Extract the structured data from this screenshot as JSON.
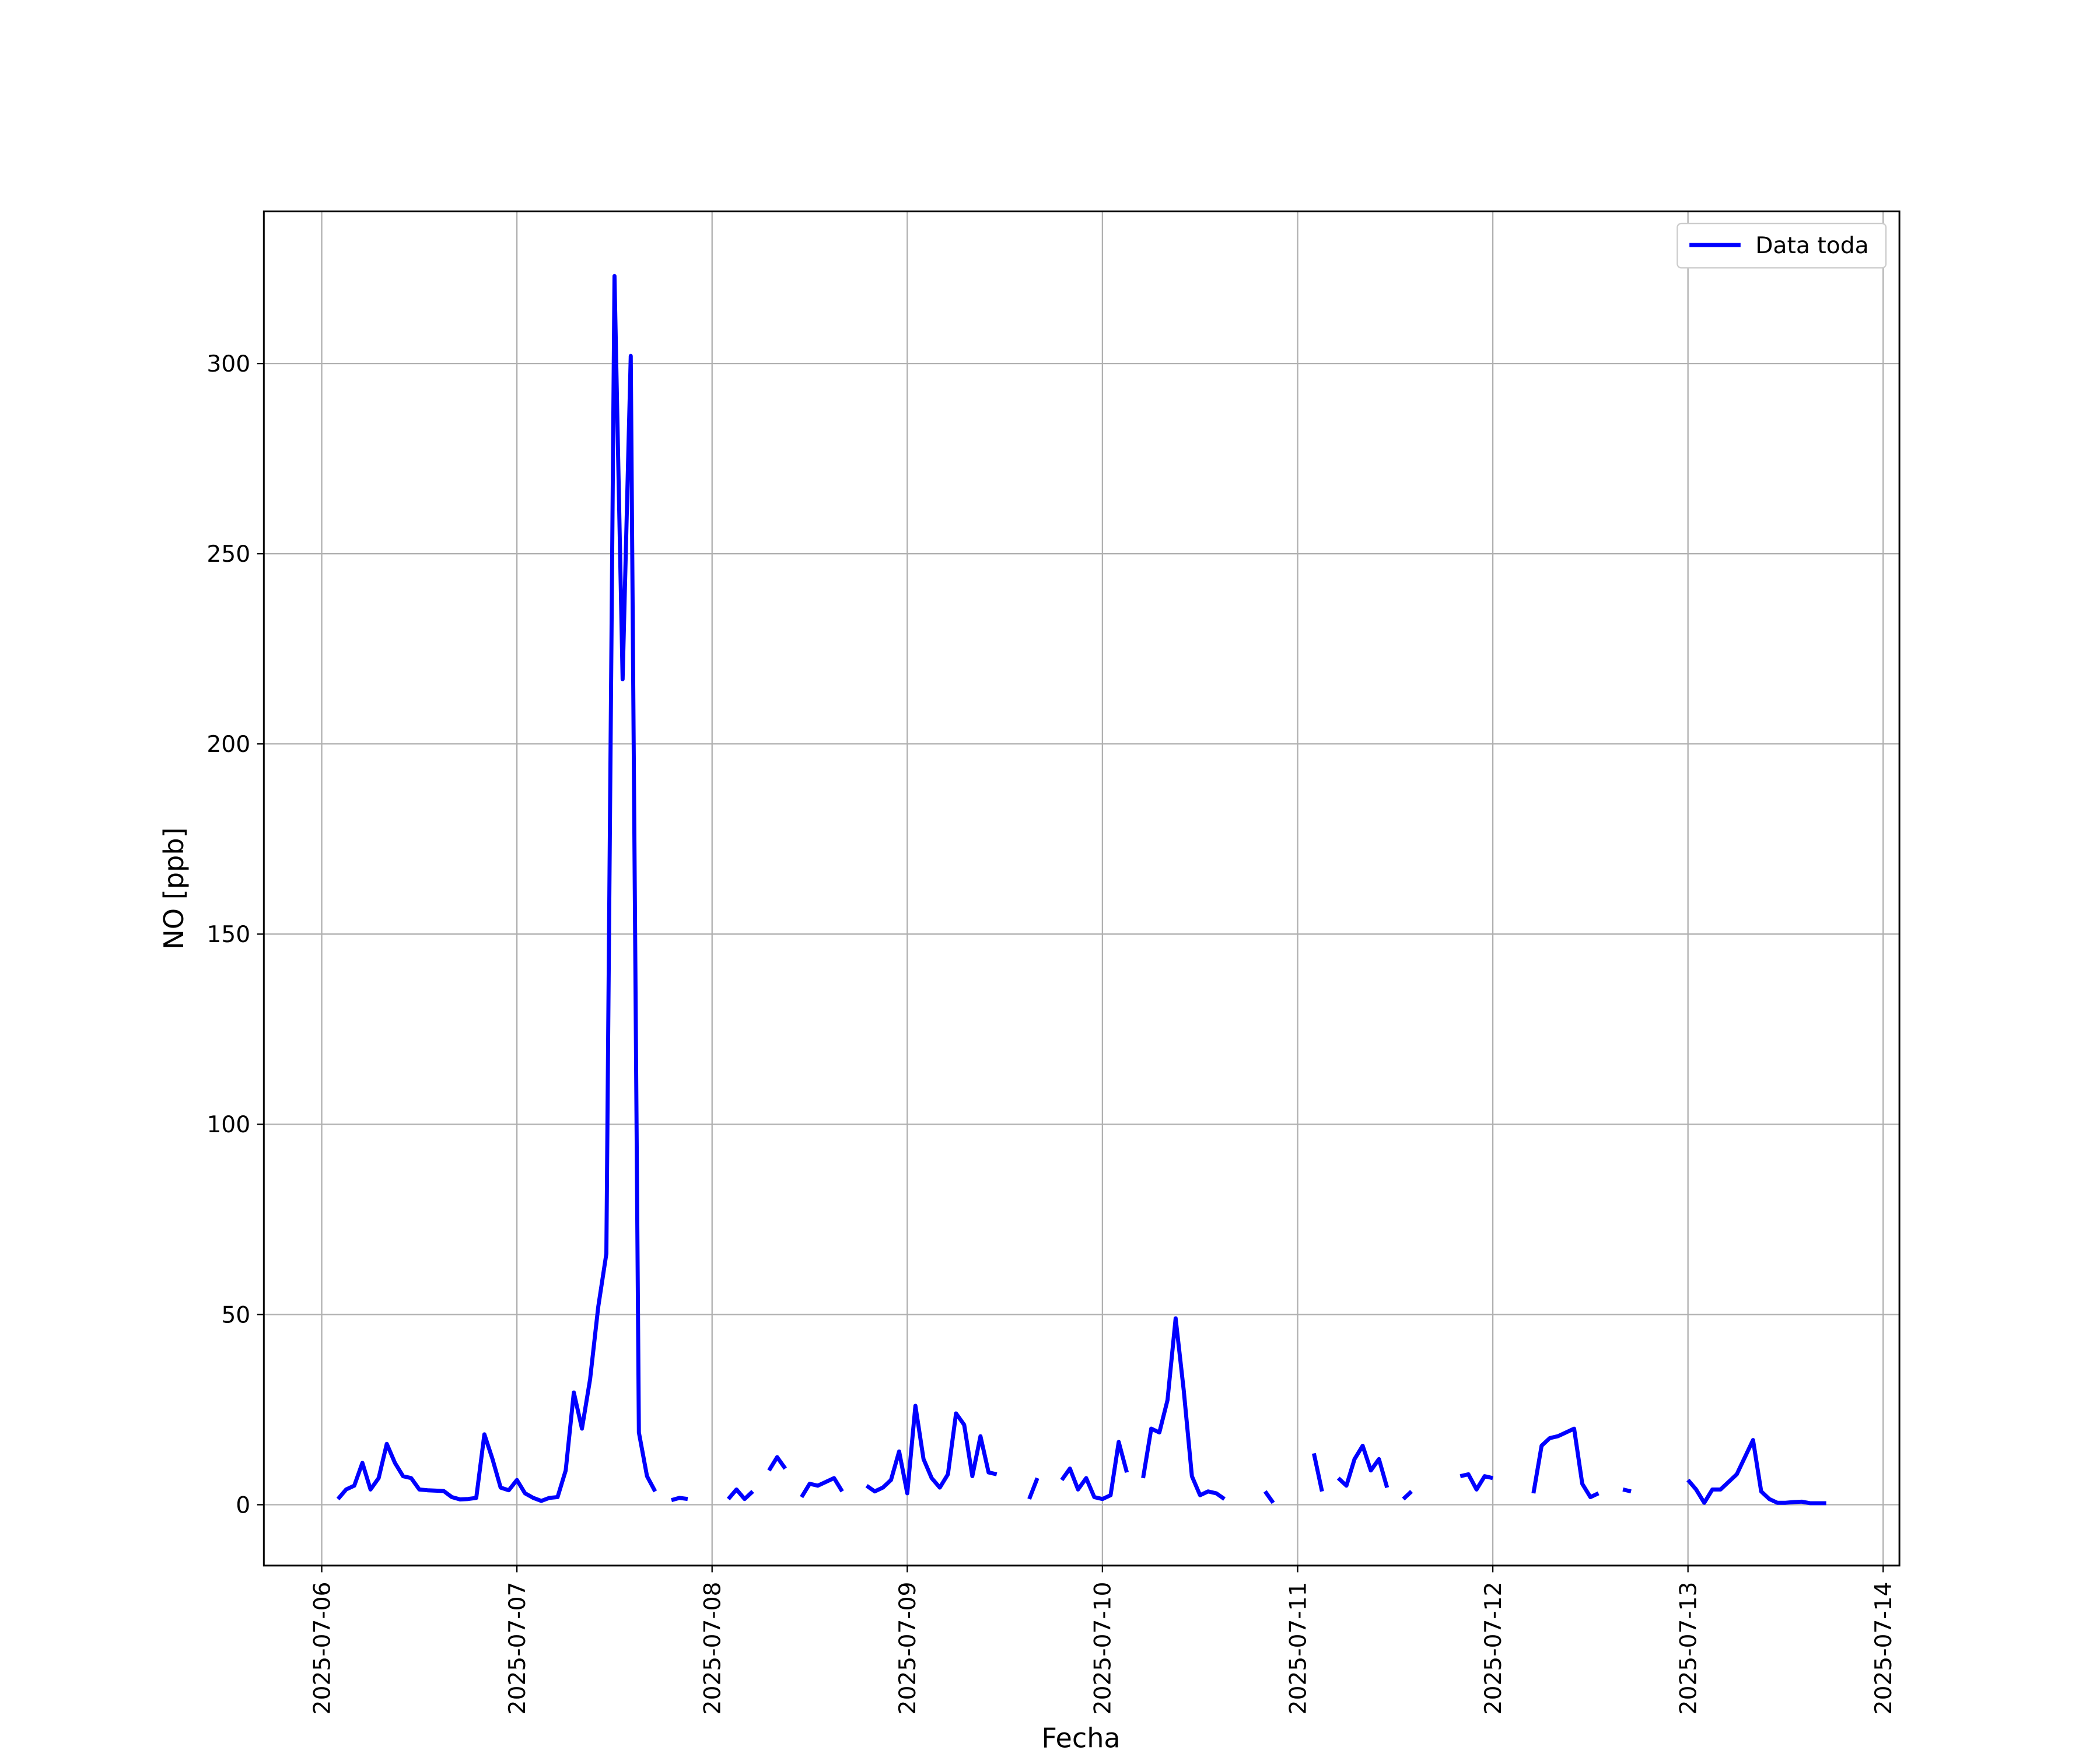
{
  "chart_data": {
    "type": "line",
    "x_label": "Fecha",
    "y_label": "NO [ppb]",
    "x": [
      "2025-07-06 02:00",
      "2025-07-06 03:00",
      "2025-07-06 04:00",
      "2025-07-06 05:00",
      "2025-07-06 06:00",
      "2025-07-06 07:00",
      "2025-07-06 08:00",
      "2025-07-06 09:00",
      "2025-07-06 10:00",
      "2025-07-06 11:00",
      "2025-07-06 12:00",
      "2025-07-06 13:00",
      "2025-07-06 14:00",
      "2025-07-06 15:00",
      "2025-07-06 16:00",
      "2025-07-06 17:00",
      "2025-07-06 18:00",
      "2025-07-06 19:00",
      "2025-07-06 20:00",
      "2025-07-06 21:00",
      "2025-07-06 22:00",
      "2025-07-06 23:00",
      "2025-07-07 00:00",
      "2025-07-07 01:00",
      "2025-07-07 02:00",
      "2025-07-07 03:00",
      "2025-07-07 04:00",
      "2025-07-07 05:00",
      "2025-07-07 06:00",
      "2025-07-07 07:00",
      "2025-07-07 08:00",
      "2025-07-07 09:00",
      "2025-07-07 10:00",
      "2025-07-07 11:00",
      "2025-07-07 12:00",
      "2025-07-07 13:00",
      "2025-07-07 14:00",
      "2025-07-07 15:00",
      "2025-07-07 16:00",
      "2025-07-07 17:00",
      "2025-07-07 18:00",
      "2025-07-07 19:00",
      "2025-07-07 20:00",
      "2025-07-07 21:00",
      "2025-07-07 22:00",
      "2025-07-07 23:00",
      "2025-07-08 00:00",
      "2025-07-08 01:00",
      "2025-07-08 02:00",
      "2025-07-08 03:00",
      "2025-07-08 04:00",
      "2025-07-08 05:00",
      "2025-07-08 06:00",
      "2025-07-08 07:00",
      "2025-07-08 08:00",
      "2025-07-08 09:00",
      "2025-07-08 10:00",
      "2025-07-08 11:00",
      "2025-07-08 12:00",
      "2025-07-08 13:00",
      "2025-07-08 14:00",
      "2025-07-08 15:00",
      "2025-07-08 16:00",
      "2025-07-08 17:00",
      "2025-07-08 18:00",
      "2025-07-08 19:00",
      "2025-07-08 20:00",
      "2025-07-08 21:00",
      "2025-07-08 22:00",
      "2025-07-08 23:00",
      "2025-07-09 00:00",
      "2025-07-09 01:00",
      "2025-07-09 02:00",
      "2025-07-09 03:00",
      "2025-07-09 04:00",
      "2025-07-09 05:00",
      "2025-07-09 06:00",
      "2025-07-09 07:00",
      "2025-07-09 08:00",
      "2025-07-09 09:00",
      "2025-07-09 10:00",
      "2025-07-09 11:00",
      "2025-07-09 12:00",
      "2025-07-09 13:00",
      "2025-07-09 14:00",
      "2025-07-09 15:00",
      "2025-07-09 16:00",
      "2025-07-09 17:00",
      "2025-07-09 18:00",
      "2025-07-09 19:00",
      "2025-07-09 20:00",
      "2025-07-09 21:00",
      "2025-07-09 22:00",
      "2025-07-09 23:00",
      "2025-07-10 00:00",
      "2025-07-10 01:00",
      "2025-07-10 02:00",
      "2025-07-10 03:00",
      "2025-07-10 04:00",
      "2025-07-10 05:00",
      "2025-07-10 06:00",
      "2025-07-10 07:00",
      "2025-07-10 08:00",
      "2025-07-10 09:00",
      "2025-07-10 10:00",
      "2025-07-10 11:00",
      "2025-07-10 12:00",
      "2025-07-10 13:00",
      "2025-07-10 14:00",
      "2025-07-10 15:00",
      "2025-07-10 16:00",
      "2025-07-10 17:00",
      "2025-07-10 18:00",
      "2025-07-10 19:00",
      "2025-07-10 20:00",
      "2025-07-10 21:00",
      "2025-07-10 22:00",
      "2025-07-10 23:00",
      "2025-07-11 00:00",
      "2025-07-11 01:00",
      "2025-07-11 02:00",
      "2025-07-11 03:00",
      "2025-07-11 04:00",
      "2025-07-11 05:00",
      "2025-07-11 06:00",
      "2025-07-11 07:00",
      "2025-07-11 08:00",
      "2025-07-11 09:00",
      "2025-07-11 10:00",
      "2025-07-11 11:00",
      "2025-07-11 12:00",
      "2025-07-11 13:00",
      "2025-07-11 14:00",
      "2025-07-11 15:00",
      "2025-07-11 16:00",
      "2025-07-11 17:00",
      "2025-07-11 18:00",
      "2025-07-11 19:00",
      "2025-07-11 20:00",
      "2025-07-11 21:00",
      "2025-07-11 22:00",
      "2025-07-11 23:00",
      "2025-07-12 00:00",
      "2025-07-12 01:00",
      "2025-07-12 02:00",
      "2025-07-12 03:00",
      "2025-07-12 04:00",
      "2025-07-12 05:00",
      "2025-07-12 06:00",
      "2025-07-12 07:00",
      "2025-07-12 08:00",
      "2025-07-12 09:00",
      "2025-07-12 10:00",
      "2025-07-12 11:00",
      "2025-07-12 12:00",
      "2025-07-12 13:00",
      "2025-07-12 14:00",
      "2025-07-12 15:00",
      "2025-07-12 16:00",
      "2025-07-12 17:00",
      "2025-07-12 18:00",
      "2025-07-12 19:00",
      "2025-07-12 20:00",
      "2025-07-12 21:00",
      "2025-07-12 22:00",
      "2025-07-12 23:00",
      "2025-07-13 00:00",
      "2025-07-13 01:00",
      "2025-07-13 02:00",
      "2025-07-13 03:00",
      "2025-07-13 04:00",
      "2025-07-13 05:00",
      "2025-07-13 06:00",
      "2025-07-13 07:00",
      "2025-07-13 08:00",
      "2025-07-13 09:00",
      "2025-07-13 10:00",
      "2025-07-13 11:00",
      "2025-07-13 12:00",
      "2025-07-13 13:00",
      "2025-07-13 14:00",
      "2025-07-13 15:00",
      "2025-07-13 16:00",
      "2025-07-13 17:00"
    ],
    "series": [
      {
        "name": "Data toda",
        "color": "#0000ff",
        "values": [
          1.5,
          4,
          5,
          11,
          4,
          7,
          16,
          11,
          7.5,
          7,
          4,
          3.8,
          3.7,
          3.6,
          2,
          1.4,
          1.5,
          1.8,
          18.5,
          12,
          4.5,
          3.8,
          6.5,
          3,
          1.8,
          1,
          1.8,
          2,
          9,
          29.5,
          20,
          33,
          52,
          66,
          323,
          217,
          302,
          19,
          7.5,
          3.5,
          null,
          1.2,
          1.8,
          1.5,
          null,
          null,
          null,
          null,
          1.5,
          4,
          1.5,
          3.5,
          null,
          9,
          12.5,
          9.5,
          null,
          2,
          5.5,
          5,
          6,
          7,
          3.5,
          null,
          null,
          5,
          3.5,
          4.5,
          6.5,
          14,
          3,
          26,
          12,
          7,
          4.5,
          8,
          24,
          21,
          7.5,
          18,
          8.5,
          8,
          null,
          null,
          null,
          1.5,
          7,
          null,
          null,
          6.5,
          9.5,
          4,
          7,
          2,
          1.5,
          2.5,
          16.5,
          8.5,
          null,
          7,
          20,
          19,
          27.5,
          49,
          30,
          7.5,
          2.5,
          3.5,
          3,
          1.5,
          null,
          null,
          null,
          null,
          3.5,
          0.5,
          null,
          null,
          null,
          null,
          13.5,
          3.5,
          null,
          7,
          5,
          12,
          15.5,
          9,
          12,
          4.5,
          null,
          1.5,
          3.5,
          null,
          null,
          null,
          null,
          null,
          7.5,
          8,
          4,
          7.5,
          7,
          null,
          null,
          null,
          null,
          3,
          15.5,
          17.5,
          18,
          19,
          20,
          5.5,
          2,
          3,
          null,
          null,
          4,
          3.5,
          null,
          null,
          null,
          null,
          null,
          null,
          6.5,
          4,
          0.5,
          4,
          4,
          6,
          8,
          12.5,
          17,
          3.5,
          1.5,
          0.5,
          0.5,
          0.7,
          0.8,
          0.4,
          0.4,
          0.4
        ]
      }
    ],
    "xlim": [
      "2025-07-05 16:53",
      "2025-07-14 02:00"
    ],
    "xticks": [
      "2025-07-06",
      "2025-07-07",
      "2025-07-08",
      "2025-07-09",
      "2025-07-10",
      "2025-07-11",
      "2025-07-12",
      "2025-07-13",
      "2025-07-14"
    ],
    "ylim": [
      -16,
      340
    ],
    "yticks": [
      0,
      50,
      100,
      150,
      200,
      250,
      300
    ],
    "grid": true,
    "legend": "upper-right"
  }
}
